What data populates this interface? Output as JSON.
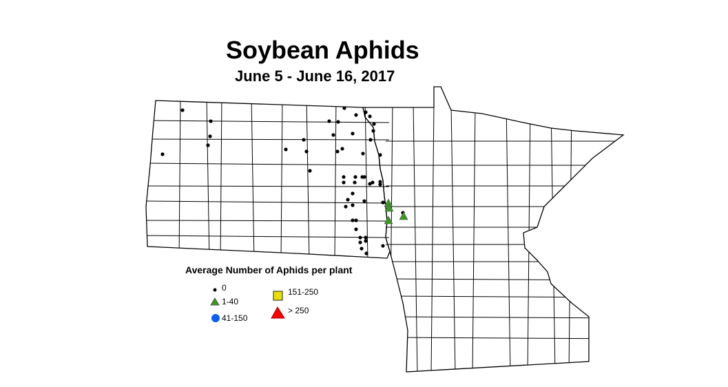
{
  "title": "Soybean Aphids",
  "subtitle": "June 5 - June 16, 2017",
  "legend": {
    "title": "Average Number of Aphids per plant",
    "items": [
      {
        "label": "0",
        "symbol": "dot",
        "color": "#000000"
      },
      {
        "label": "1-40",
        "symbol": "triangle",
        "color": "#3a9a1c"
      },
      {
        "label": "41-150",
        "symbol": "circle",
        "color": "#0a5ff0"
      },
      {
        "label": "151-250",
        "symbol": "square",
        "color": "#e8e000"
      },
      {
        "label": "> 250",
        "symbol": "triangle-large",
        "color": "#ff0000"
      }
    ]
  }
}
